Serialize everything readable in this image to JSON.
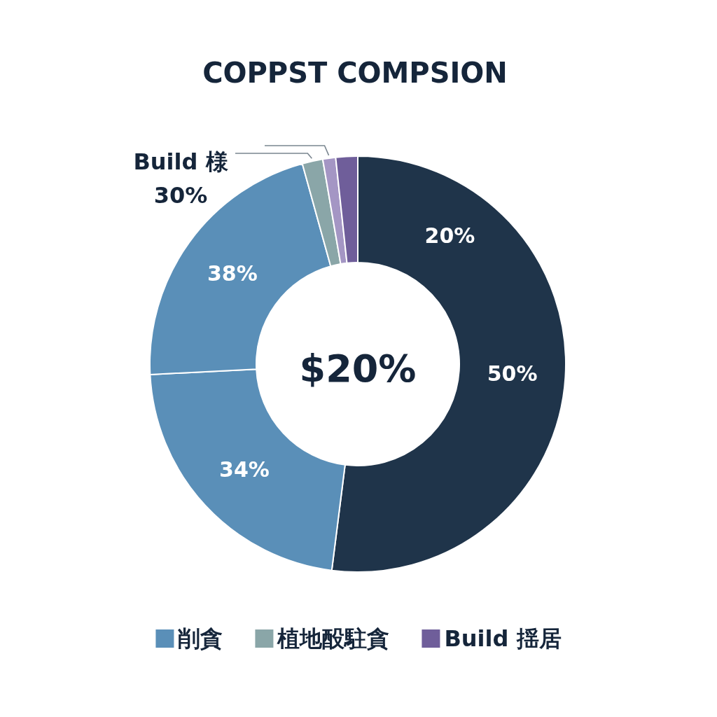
{
  "chart_data": {
    "type": "donut",
    "title": "COPPST COMPSION",
    "categories": [
      null,
      "削貪",
      null,
      "植地酘駐貪",
      null,
      "Build 揺居"
    ],
    "values": [
      52,
      22.2,
      21.5,
      1.6,
      1.0,
      1.7
    ],
    "colors": [
      "#1f344a",
      "#5a8fb8",
      "#5a8fb8",
      "#8aa6a8",
      "#a496c4",
      "#6f5e9a"
    ],
    "annotations": [
      "20%",
      "$20%",
      "Build 様 30%",
      "50%",
      "34%",
      "38%"
    ],
    "legend": "bottom"
  }
}
